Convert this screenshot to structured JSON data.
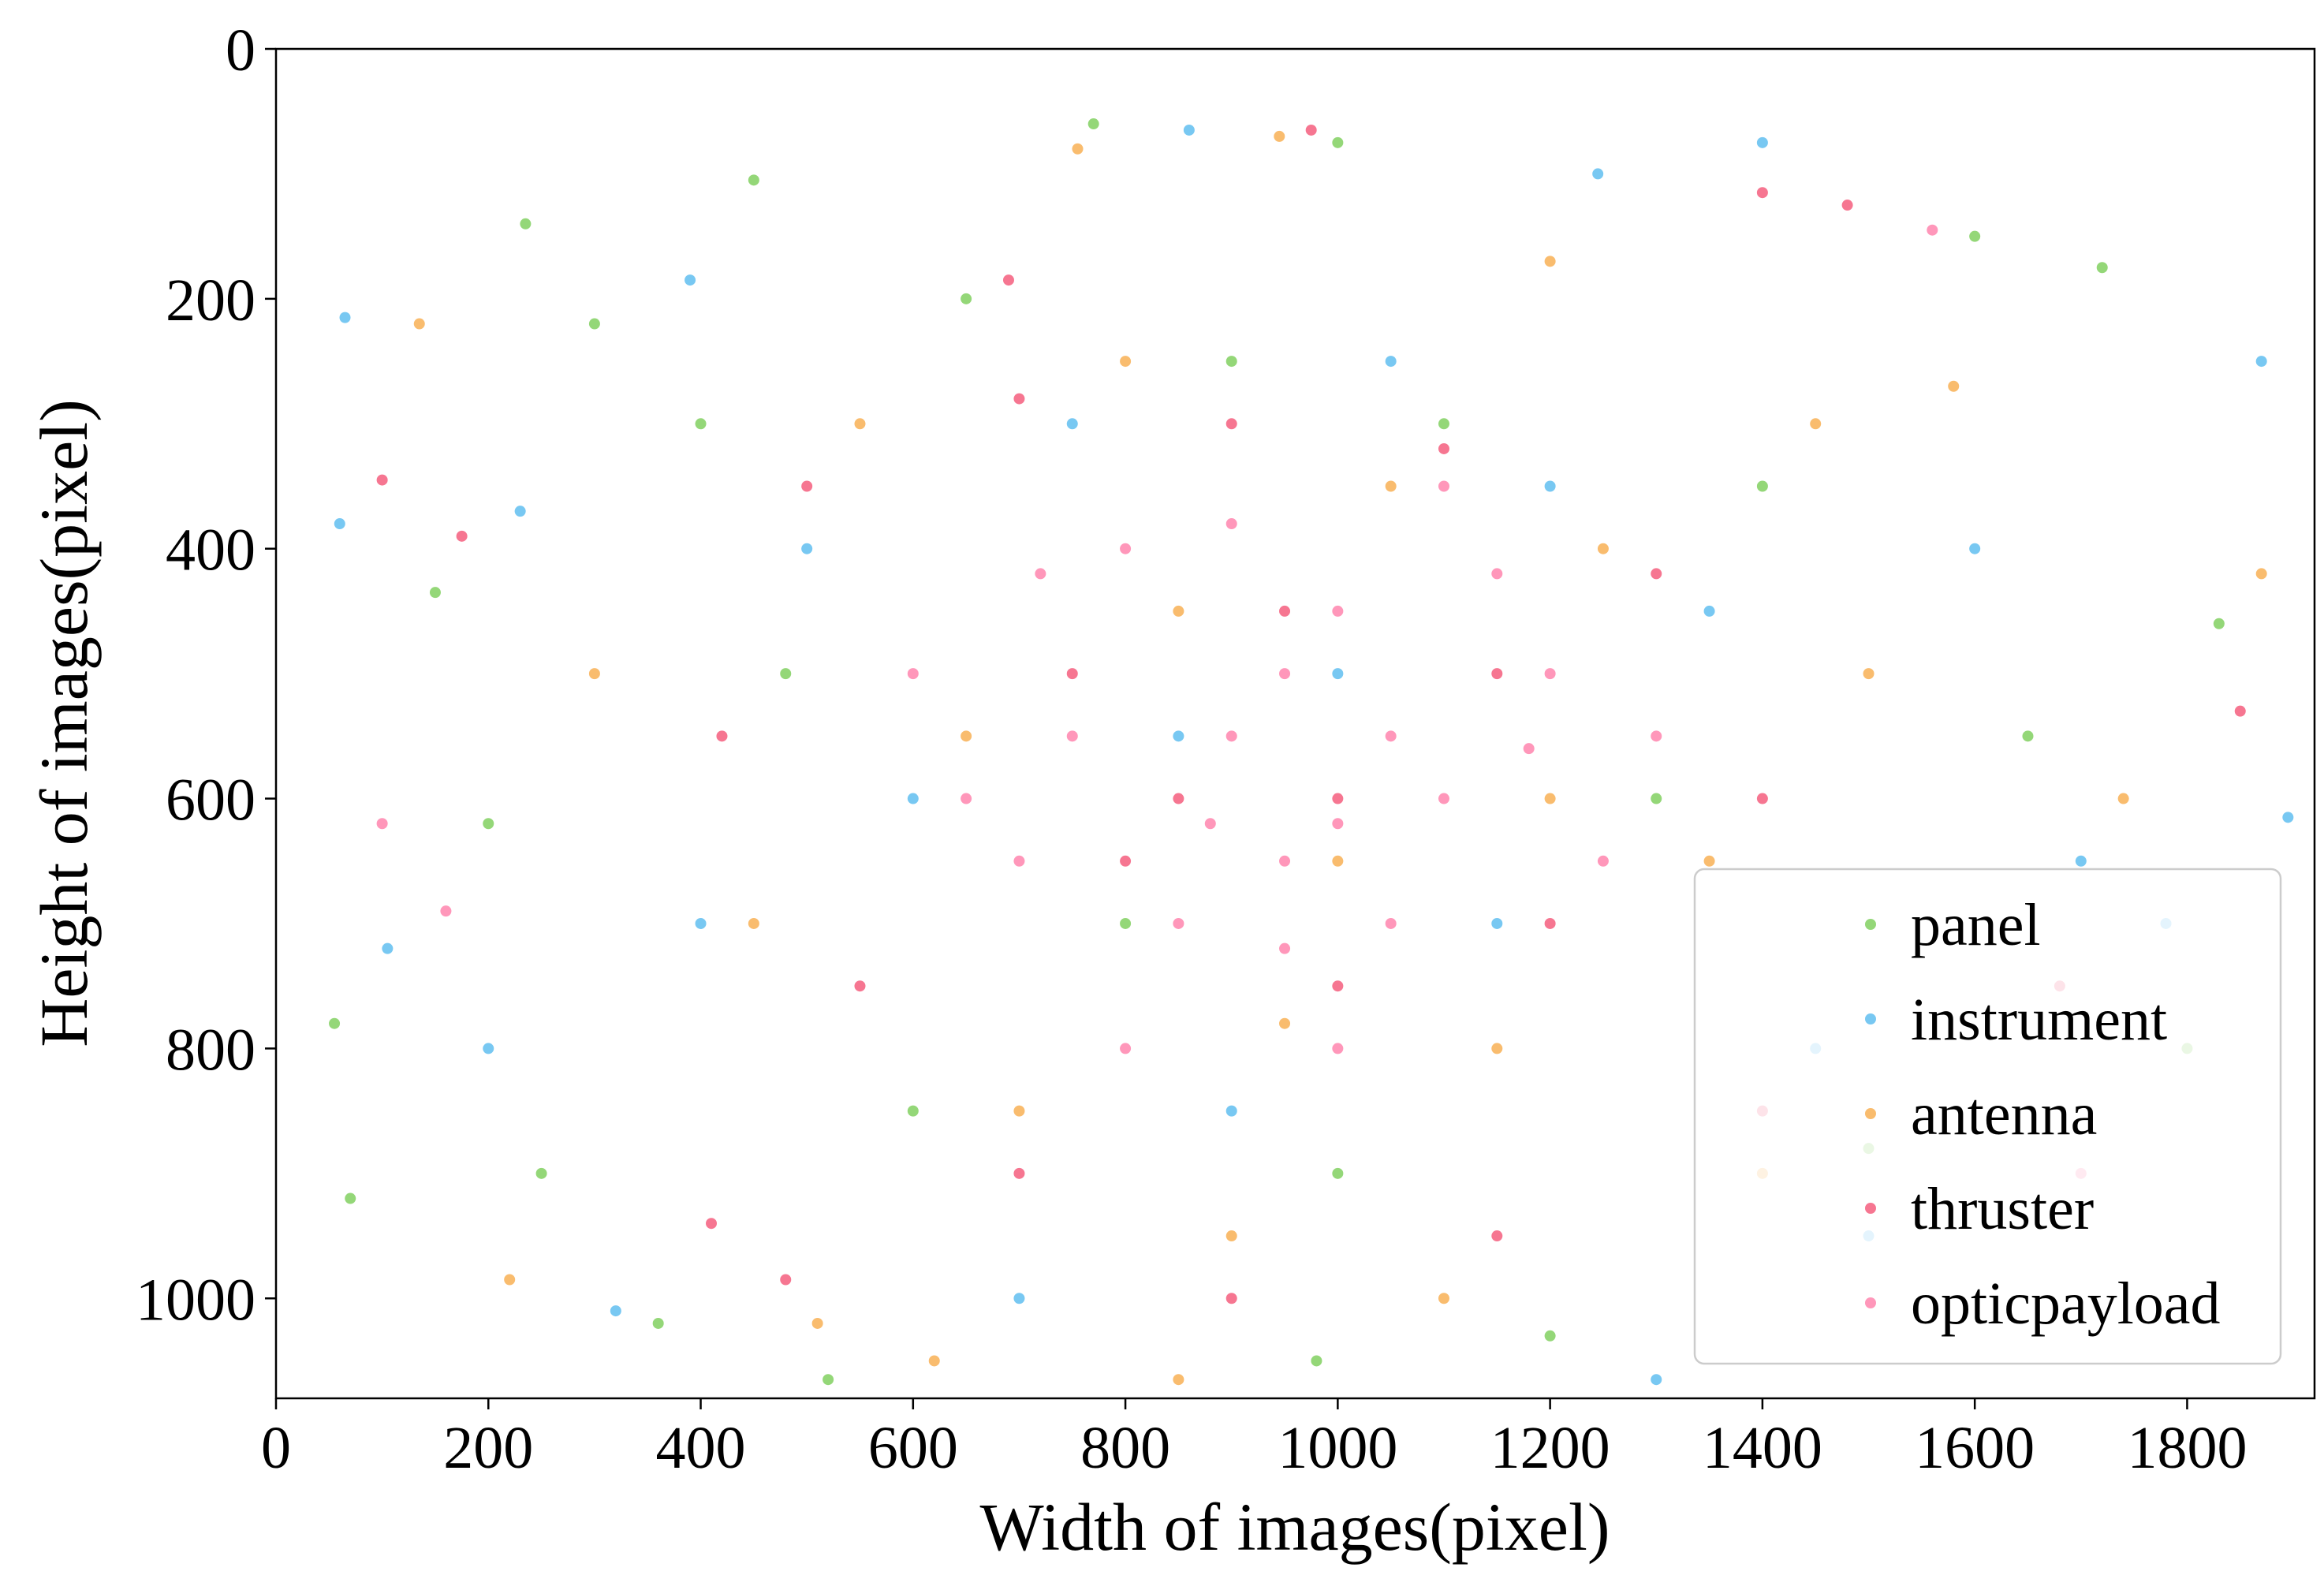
{
  "chart_data": {
    "type": "scatter",
    "xlabel": "Width of images(pixel)",
    "ylabel": "Height of images(pixel)",
    "xlim": [
      0,
      1920
    ],
    "ylim": [
      0,
      1080
    ],
    "y_inverted": true,
    "xticks": [
      0,
      200,
      400,
      600,
      800,
      1000,
      1200,
      1400,
      1600,
      1800
    ],
    "yticks": [
      0,
      200,
      400,
      600,
      800,
      1000
    ],
    "legend": "lower right",
    "alpha": 0.7,
    "series": [
      {
        "name": "panel",
        "color": "#66c63e",
        "x": [
          55,
          70,
          235,
          150,
          300,
          450,
          770,
          1000,
          1600,
          1720,
          1830,
          1800,
          1500,
          1200,
          980,
          520,
          360,
          250,
          200,
          400,
          650,
          900,
          1100,
          1400,
          1300,
          800,
          600,
          1000,
          1650,
          480
        ],
        "values": [
          780,
          920,
          140,
          435,
          220,
          105,
          60,
          75,
          150,
          175,
          460,
          800,
          880,
          1030,
          1050,
          1065,
          1020,
          900,
          620,
          300,
          200,
          250,
          300,
          350,
          600,
          700,
          850,
          900,
          550,
          500
        ]
      },
      {
        "name": "instrument",
        "color": "#3fb0ec",
        "x": [
          60,
          65,
          105,
          230,
          390,
          860,
          1245,
          1400,
          1870,
          1895,
          1780,
          1500,
          1300,
          700,
          320,
          200,
          500,
          750,
          1050,
          1350,
          1150,
          900,
          600,
          1600,
          1450,
          1000,
          850,
          1200,
          400,
          1700
        ],
        "values": [
          380,
          215,
          720,
          370,
          185,
          65,
          100,
          75,
          250,
          615,
          700,
          950,
          1065,
          1000,
          1010,
          800,
          400,
          300,
          250,
          450,
          700,
          850,
          600,
          400,
          800,
          500,
          550,
          350,
          700,
          650
        ]
      },
      {
        "name": "antenna",
        "color": "#f7a030",
        "x": [
          135,
          220,
          510,
          620,
          850,
          755,
          945,
          1200,
          1580,
          1870,
          1740,
          1400,
          1100,
          900,
          700,
          450,
          300,
          550,
          800,
          1050,
          1250,
          1350,
          1000,
          850,
          650,
          1150,
          1500,
          1450,
          950,
          1200
        ],
        "values": [
          220,
          985,
          1020,
          1050,
          1065,
          80,
          70,
          170,
          270,
          420,
          600,
          900,
          1000,
          950,
          850,
          700,
          500,
          300,
          250,
          350,
          400,
          650,
          650,
          450,
          550,
          800,
          500,
          300,
          780,
          600
        ]
      },
      {
        "name": "thruster",
        "color": "#f23c62",
        "x": [
          100,
          175,
          410,
          480,
          690,
          975,
          1400,
          1480,
          1850,
          1680,
          1400,
          1150,
          900,
          700,
          550,
          420,
          500,
          700,
          900,
          1100,
          1300,
          1400,
          1200,
          1000,
          800,
          750,
          950,
          1150,
          1000,
          850
        ],
        "values": [
          345,
          390,
          940,
          985,
          185,
          65,
          115,
          125,
          530,
          750,
          850,
          950,
          1000,
          900,
          750,
          550,
          350,
          280,
          300,
          320,
          420,
          600,
          700,
          750,
          650,
          500,
          450,
          500,
          600,
          600
        ]
      },
      {
        "name": "opticpayload",
        "color": "#ff6b9c",
        "x": [
          100,
          160,
          1560,
          1700,
          600,
          700,
          800,
          900,
          1000,
          1100,
          1200,
          850,
          950,
          1050,
          750,
          900,
          1150,
          1250,
          650,
          1000,
          800,
          1100,
          950,
          1050,
          880,
          1000,
          720,
          1180,
          1300,
          950
        ],
        "values": [
          620,
          690,
          145,
          900,
          500,
          650,
          400,
          550,
          450,
          600,
          500,
          700,
          650,
          700,
          550,
          380,
          420,
          650,
          600,
          800,
          800,
          350,
          500,
          550,
          620,
          620,
          420,
          560,
          550,
          720
        ]
      }
    ]
  }
}
